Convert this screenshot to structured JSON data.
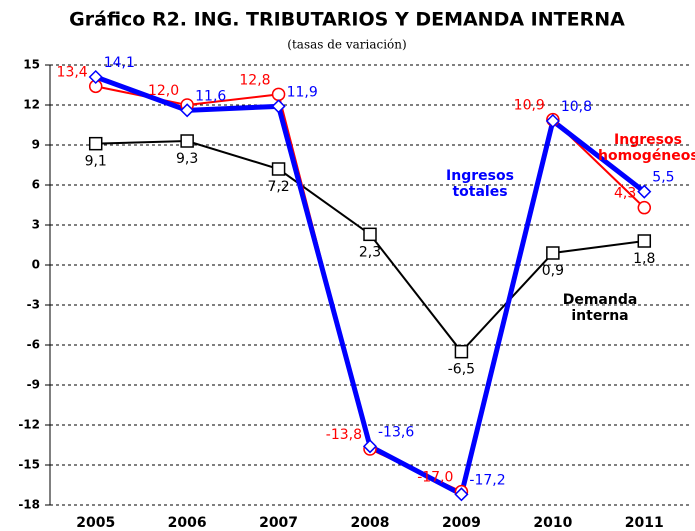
{
  "chart_data": {
    "type": "line",
    "title": "Gráfico R2. ING. TRIBUTARIOS Y DEMANDA INTERNA",
    "subtitle": "(tasas de variación)",
    "categories": [
      "2005",
      "2006",
      "2007",
      "2008",
      "2009",
      "2010",
      "2011"
    ],
    "ylim": [
      -18,
      15
    ],
    "yticks": [
      15,
      12,
      9,
      6,
      3,
      0,
      -3,
      -6,
      -9,
      -12,
      -15,
      -18
    ],
    "grid": true,
    "series": [
      {
        "name": "Demanda interna",
        "color": "#000000",
        "marker": "square",
        "values": [
          9.1,
          9.3,
          7.2,
          2.3,
          -6.5,
          0.9,
          1.8
        ],
        "value_labels": [
          "9,1",
          "9,3",
          "7,2",
          "2,3",
          "-6,5",
          "0,9",
          "1,8"
        ]
      },
      {
        "name": "Ingresos homogéneos",
        "color": "#ff0000",
        "marker": "circle",
        "values": [
          13.4,
          12.0,
          12.8,
          -13.8,
          -17.0,
          10.9,
          4.3
        ],
        "value_labels": [
          "13,4",
          "12,0",
          "12,8",
          "-13,8",
          "-17,0",
          "10,9",
          "4,3"
        ]
      },
      {
        "name": "Ingresos totales",
        "color": "#0000ff",
        "marker": "diamond",
        "values": [
          14.1,
          11.6,
          11.9,
          -13.6,
          -17.2,
          10.8,
          5.5
        ],
        "value_labels": [
          "14,1",
          "11,6",
          "11,9",
          "-13,6",
          "-17,2",
          "10,8",
          "5,5"
        ]
      }
    ]
  }
}
